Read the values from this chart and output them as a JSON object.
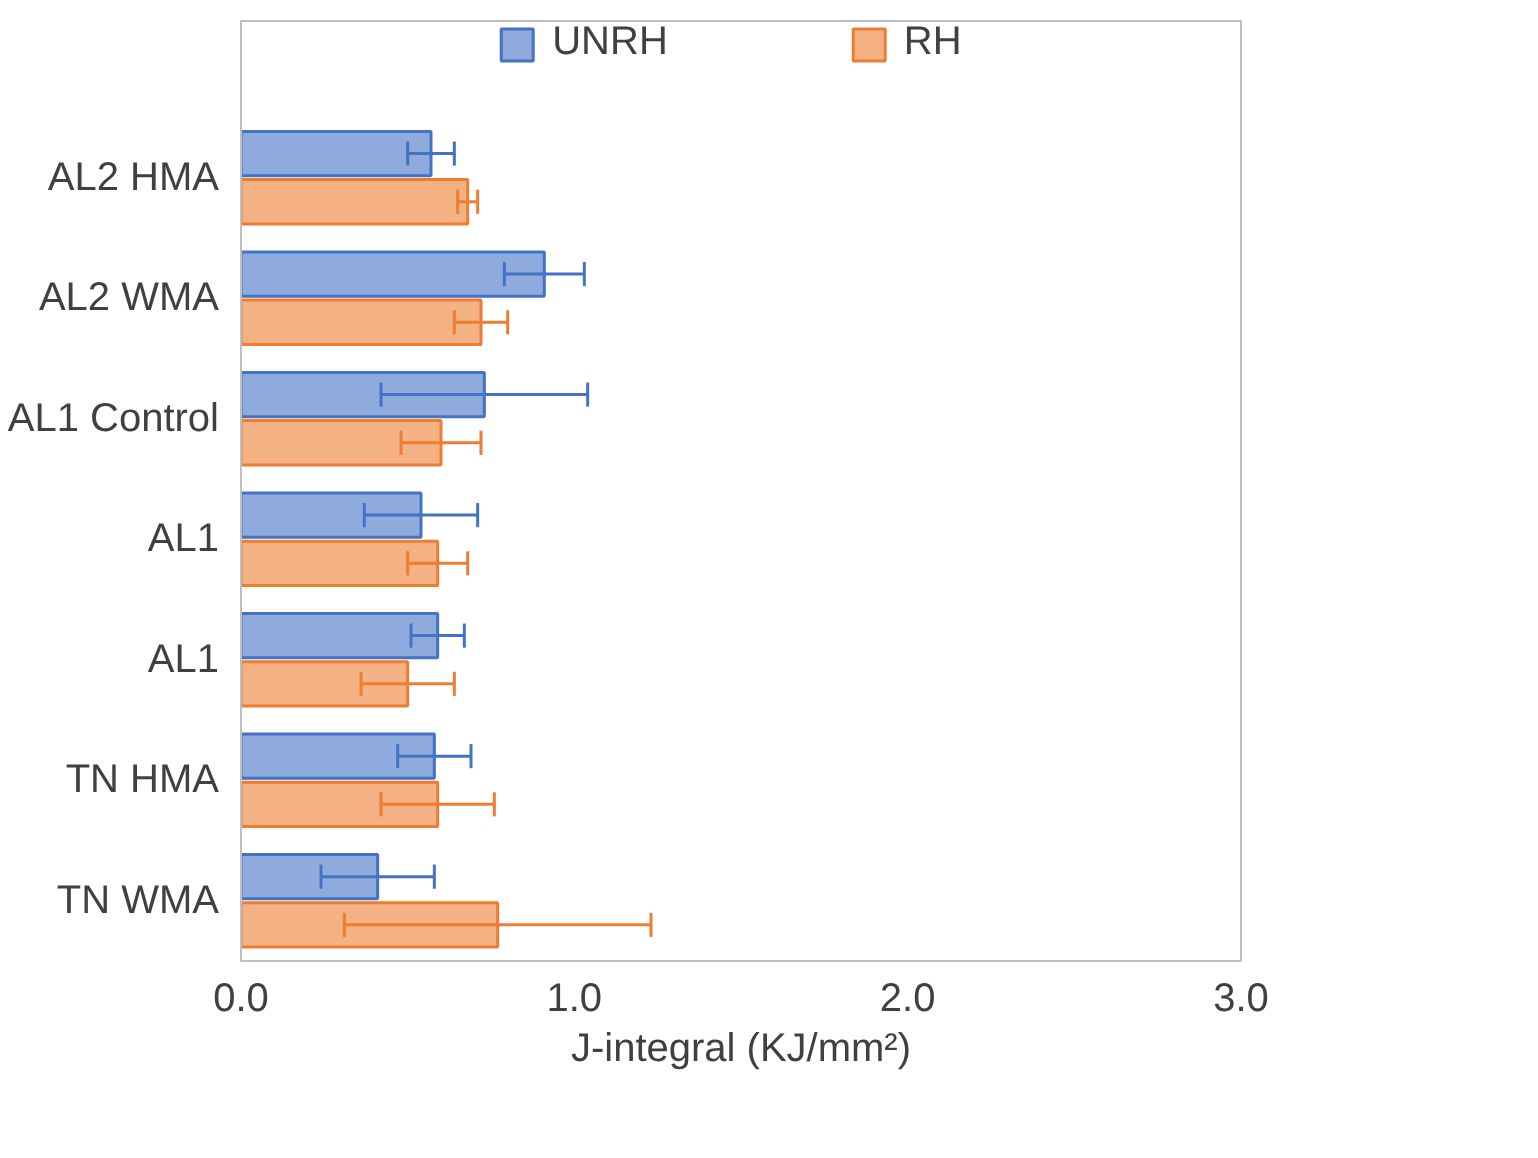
{
  "chart_data": {
    "type": "bar",
    "orientation": "horizontal",
    "xlabel": "J-integral (KJ/mm²)",
    "categories": [
      "AL2 HMA",
      "AL2 WMA",
      "AL1 Control",
      "AL1",
      "AL1",
      "TN HMA",
      "TN WMA"
    ],
    "series": [
      {
        "name": "UNRH",
        "color": "#4472c4",
        "values": [
          0.57,
          0.91,
          0.73,
          0.54,
          0.59,
          0.58,
          0.41
        ],
        "errors": [
          0.07,
          0.12,
          0.31,
          0.17,
          0.08,
          0.11,
          0.17
        ]
      },
      {
        "name": "RH",
        "color": "#ed7d31",
        "values": [
          0.68,
          0.72,
          0.6,
          0.59,
          0.5,
          0.59,
          0.77
        ],
        "errors": [
          0.03,
          0.08,
          0.12,
          0.09,
          0.14,
          0.17,
          0.46
        ]
      }
    ],
    "xlim": [
      0,
      3
    ],
    "xticks": [
      {
        "value": 0,
        "label": "0.0"
      },
      {
        "value": 1,
        "label": "1.0"
      },
      {
        "value": 2,
        "label": "2.0"
      },
      {
        "value": 3,
        "label": "3.0"
      }
    ],
    "grid": false,
    "legend": "top"
  }
}
